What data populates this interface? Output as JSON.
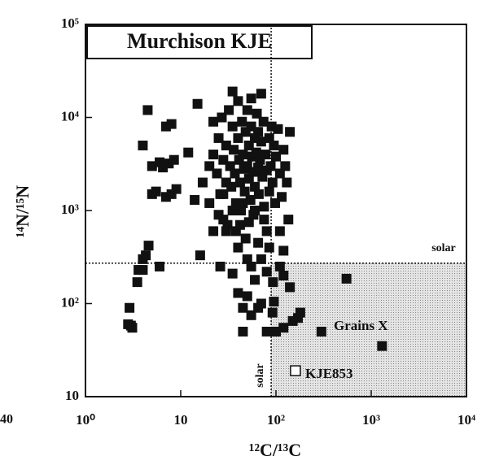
{
  "chart_data": {
    "type": "scatter",
    "title": "Murchison KJE",
    "x_label": "¹²C/¹³C",
    "y_label": "¹⁴N/¹⁵N",
    "log_x": true,
    "log_y": true,
    "xlim": [
      1,
      10000
    ],
    "ylim": [
      10,
      100000
    ],
    "xticks": [
      {
        "value": 1,
        "label": "10⁰"
      },
      10,
      {
        "value": 100,
        "label": "10²"
      },
      {
        "value": 1000,
        "label": "10³"
      },
      {
        "value": 10000,
        "label": "10⁴"
      }
    ],
    "yticks": [
      10,
      {
        "value": 100,
        "label": "10²"
      },
      {
        "value": 1000,
        "label": "10³"
      },
      {
        "value": 10000,
        "label": "10⁴"
      },
      {
        "value": 100000,
        "label": "10⁵"
      }
    ],
    "solar_x": 89,
    "solar_y": 272,
    "solar_x_label": "solar",
    "solar_y_label": "solar",
    "annotations": [
      "Grains X",
      "40"
    ],
    "series": [
      {
        "color": "#111111",
        "filled": true,
        "x": [
          2.8,
          3.0,
          3.1,
          2.9,
          3.5,
          3.6,
          4.0,
          4.3,
          4.6,
          4.0,
          6.0,
          4.5,
          4.0,
          5.0,
          6.0,
          6.5,
          7.5,
          8.5,
          5.5,
          7,
          8,
          9,
          7,
          8,
          5,
          12,
          15,
          14,
          17,
          16,
          35,
          40,
          45,
          50,
          55,
          45,
          60,
          70,
          65,
          80,
          93,
          95,
          92,
          100,
          120,
          140,
          150,
          170,
          180,
          120,
          300,
          550,
          1300,
          110,
          120,
          110,
          20,
          22,
          22,
          24,
          25,
          26,
          27,
          28,
          28,
          30,
          30,
          31,
          32,
          33,
          34,
          35,
          35,
          36,
          37,
          38,
          38,
          40,
          40,
          41,
          42,
          43,
          44,
          45,
          46,
          47,
          48,
          48,
          50,
          50,
          52,
          52,
          54,
          55,
          55,
          56,
          58,
          58,
          60,
          60,
          62,
          63,
          65,
          65,
          66,
          68,
          70,
          70,
          72,
          74,
          75,
          78,
          80,
          80,
          85,
          85,
          88,
          90,
          92,
          95,
          98,
          100,
          105,
          110,
          115,
          120,
          125,
          130,
          135,
          140,
          60,
          45,
          35,
          28,
          25,
          30,
          40,
          50,
          55,
          70,
          80,
          42,
          52,
          65,
          75,
          85,
          22,
          26,
          20
        ],
        "values": [
          60,
          58,
          55,
          90,
          170,
          230,
          300,
          330,
          420,
          230,
          250,
          12000,
          5000,
          3000,
          3300,
          2900,
          3200,
          3500,
          1600,
          1400,
          1500,
          1700,
          8000,
          8500,
          1500,
          4200,
          14000,
          1300,
          2000,
          330,
          210,
          130,
          90,
          120,
          75,
          50,
          180,
          100,
          90,
          50,
          170,
          105,
          80,
          50,
          55,
          150,
          65,
          70,
          80,
          200,
          50,
          185,
          35,
          600,
          370,
          250,
          3000,
          9000,
          4000,
          2500,
          6000,
          1500,
          10000,
          800,
          3500,
          5000,
          2000,
          700,
          12000,
          3000,
          1800,
          19000,
          8000,
          4500,
          2500,
          1200,
          600,
          15000,
          6000,
          3500,
          2000,
          1000,
          9000,
          4000,
          2800,
          1600,
          500,
          7000,
          12000,
          3000,
          2200,
          5000,
          1300,
          16000,
          8000,
          3800,
          2600,
          900,
          6000,
          1800,
          4200,
          11000,
          2900,
          7000,
          1500,
          3500,
          18000,
          5500,
          2300,
          9000,
          1100,
          4000,
          2700,
          600,
          6000,
          1600,
          3000,
          8000,
          2000,
          5000,
          1200,
          3800,
          7500,
          2500,
          1400,
          4500,
          3000,
          2000,
          800,
          7000,
          1000,
          1200,
          1000,
          1500,
          900,
          600,
          400,
          300,
          250,
          300,
          220,
          700,
          750,
          450,
          800,
          400,
          600,
          250,
          1200
        ]
      },
      {
        "name": "KJE853",
        "color": "#111111",
        "filled": false,
        "x": [
          160
        ],
        "values": [
          19
        ]
      }
    ]
  }
}
